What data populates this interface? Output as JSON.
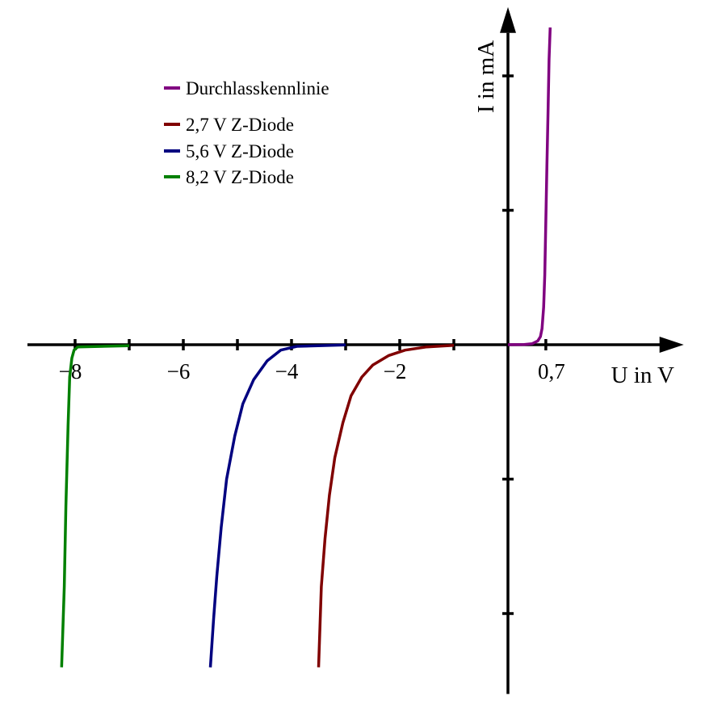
{
  "chart_data": {
    "type": "line",
    "title": "",
    "xlabel": "U in V",
    "ylabel": "I in mA",
    "xlim": [
      -9,
      3.1
    ],
    "ylim": [
      -6.0,
      6.1
    ],
    "x_tick_values": [
      -8,
      -7,
      -6,
      -5,
      -4,
      -3,
      -2,
      -1,
      0.7
    ],
    "x_tick_labels": [
      {
        "value": -8,
        "text": "−8"
      },
      {
        "value": -6,
        "text": "−6"
      },
      {
        "value": -4,
        "text": "−4"
      },
      {
        "value": -2,
        "text": "−2"
      },
      {
        "value": 0.7,
        "text": "0,7"
      }
    ],
    "y_tick_values": [
      5,
      2.5,
      -2.5,
      -5
    ],
    "grid": false,
    "legend_position": "top-left",
    "series": [
      {
        "name": "Durchlasskennlinie",
        "color": "#800080",
        "x": [
          0,
          0.3,
          0.45,
          0.55,
          0.6,
          0.63,
          0.66,
          0.68,
          0.7,
          0.72,
          0.74,
          0.76,
          0.78
        ],
        "y": [
          0,
          0.005,
          0.02,
          0.07,
          0.15,
          0.3,
          0.7,
          1.3,
          2.3,
          3.3,
          4.3,
          5.3,
          5.9
        ]
      },
      {
        "name": "2,7 V Z-Diode",
        "color": "#800000",
        "x": [
          -1.0,
          -1.5,
          -1.9,
          -2.2,
          -2.5,
          -2.7,
          -2.9,
          -3.05,
          -3.2,
          -3.3,
          -3.38,
          -3.45,
          -3.5
        ],
        "y": [
          -0.01,
          -0.04,
          -0.1,
          -0.2,
          -0.38,
          -0.6,
          -0.95,
          -1.45,
          -2.1,
          -2.8,
          -3.6,
          -4.5,
          -6.0
        ]
      },
      {
        "name": "5,6 V Z-Diode",
        "color": "#000080",
        "x": [
          -3.0,
          -3.9,
          -4.2,
          -4.45,
          -4.7,
          -4.9,
          -5.05,
          -5.2,
          -5.3,
          -5.38,
          -5.44,
          -5.5
        ],
        "y": [
          -0.005,
          -0.03,
          -0.1,
          -0.3,
          -0.65,
          -1.1,
          -1.7,
          -2.5,
          -3.4,
          -4.3,
          -5.1,
          -6.0
        ]
      },
      {
        "name": "8,2 V Z-Diode",
        "color": "#008000",
        "x": [
          -7.0,
          -7.95,
          -8.02,
          -8.06,
          -8.1,
          -8.13,
          -8.17,
          -8.2,
          -8.25
        ],
        "y": [
          -0.02,
          -0.04,
          -0.1,
          -0.25,
          -0.6,
          -1.5,
          -3.0,
          -4.5,
          -6.0
        ]
      }
    ]
  }
}
